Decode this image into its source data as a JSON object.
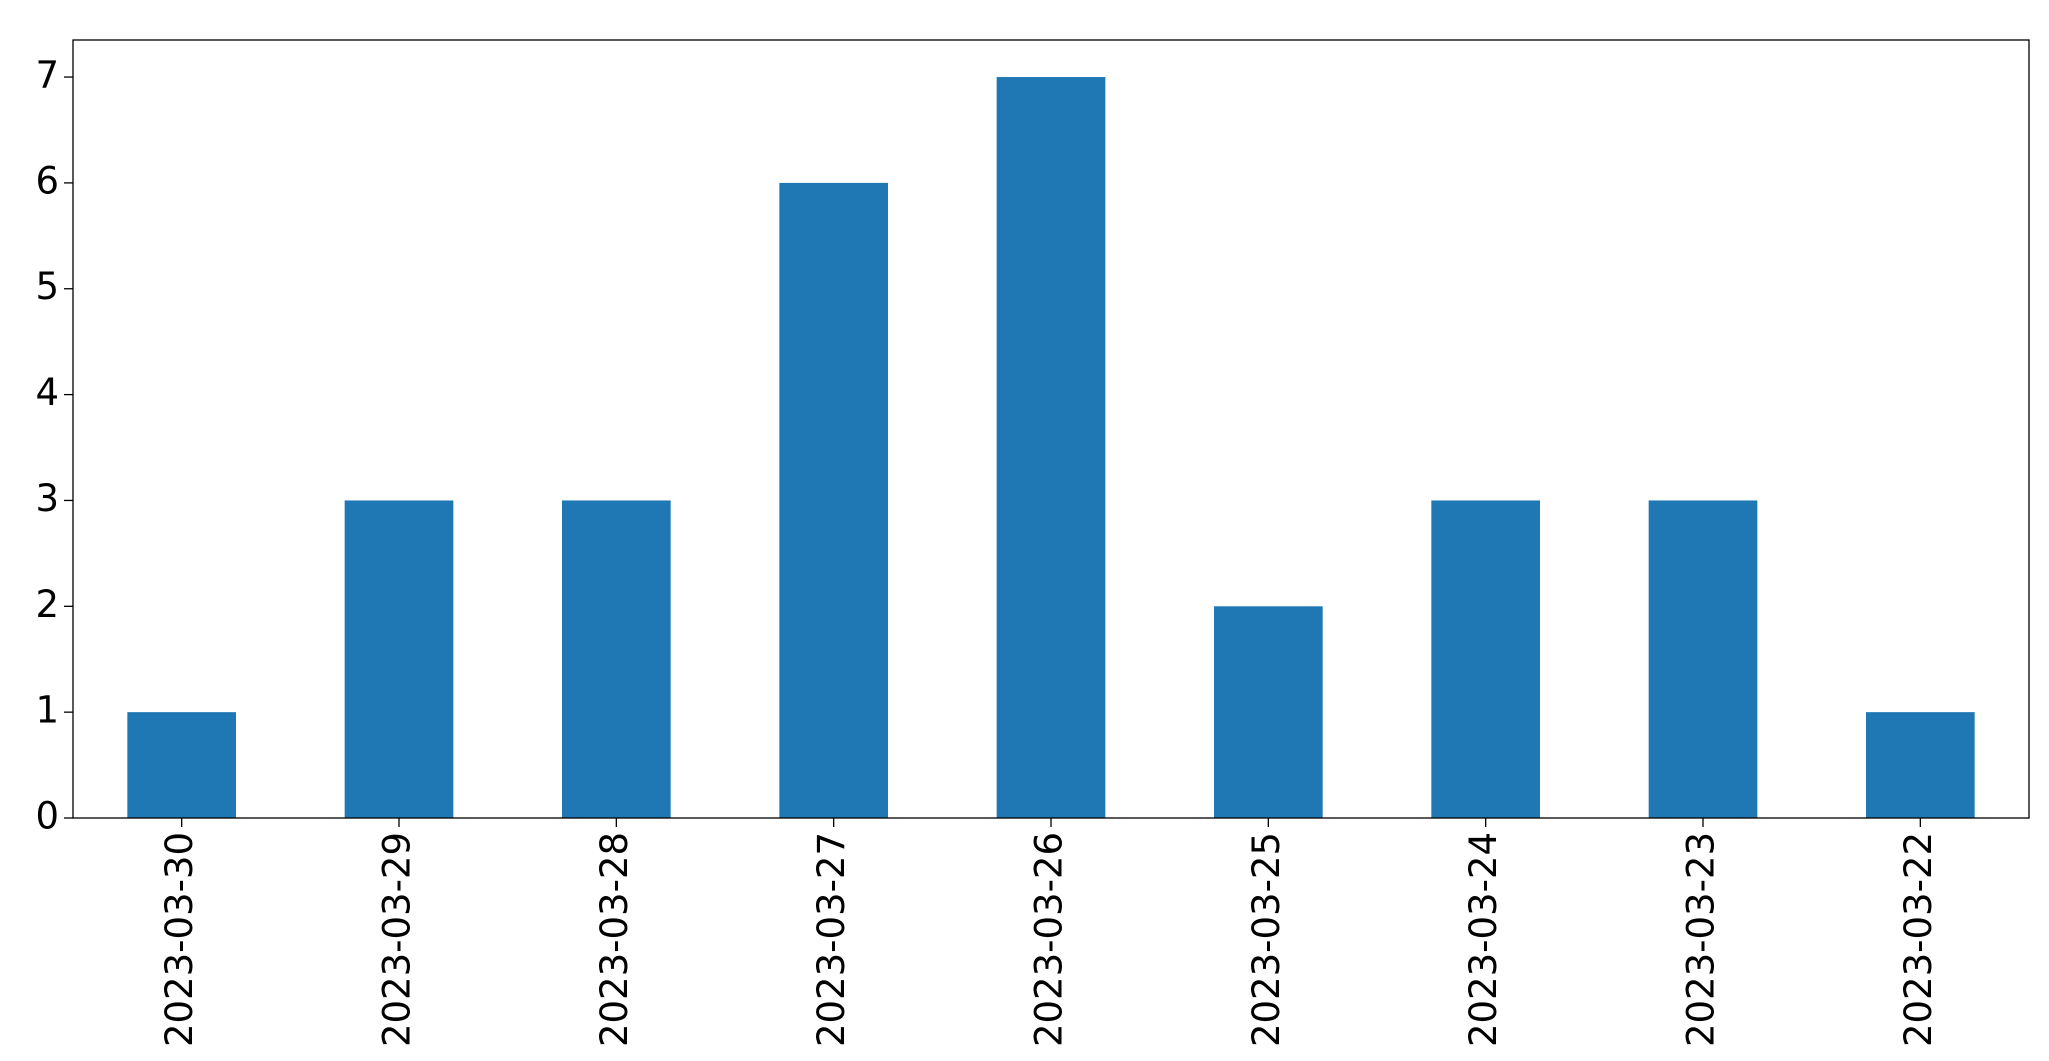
{
  "chart_data": {
    "type": "bar",
    "categories": [
      "2023-03-30",
      "2023-03-29",
      "2023-03-28",
      "2023-03-27",
      "2023-03-26",
      "2023-03-25",
      "2023-03-24",
      "2023-03-23",
      "2023-03-22"
    ],
    "values": [
      1,
      3,
      3,
      6,
      7,
      2,
      3,
      3,
      1
    ],
    "color": "#1f77b4",
    "ylim": [
      0,
      7.35
    ],
    "yticks": [
      0,
      1,
      2,
      3,
      4,
      5,
      6,
      7
    ],
    "grid": false
  }
}
